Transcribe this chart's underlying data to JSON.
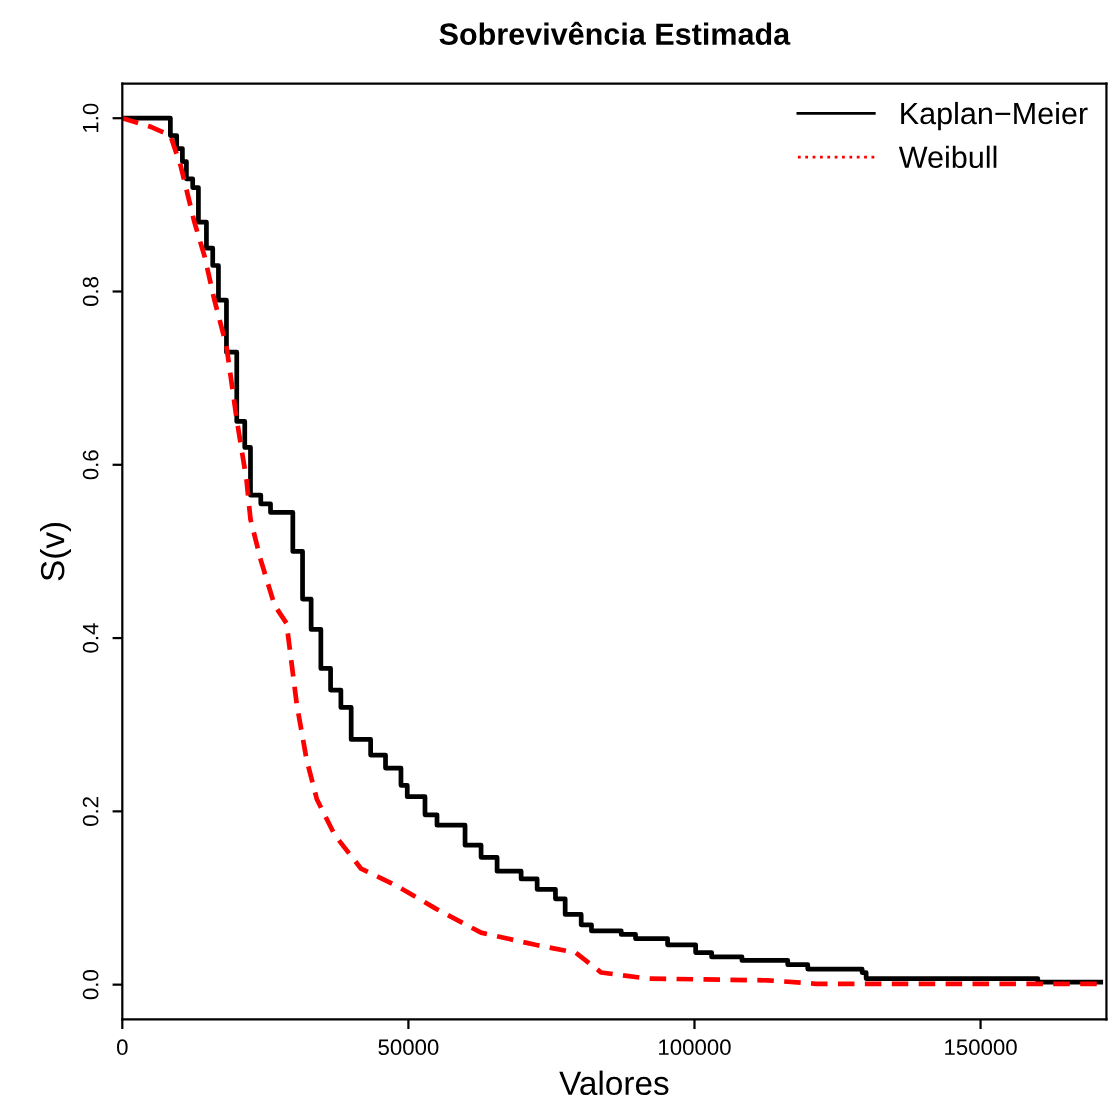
{
  "chart_data": {
    "type": "step",
    "title": "Sobrevivência Estimada",
    "xlabel": "Valores",
    "ylabel": "S(v)",
    "xlim": [
      0,
      172000
    ],
    "xticks": [
      0,
      50000,
      100000,
      150000
    ],
    "ylim": [
      -0.04,
      1.04
    ],
    "yticks": [
      {
        "value": 0,
        "label": "0.0"
      },
      {
        "value": 0.2,
        "label": "0.2"
      },
      {
        "value": 0.4,
        "label": "0.4"
      },
      {
        "value": 0.6,
        "label": "0.6"
      },
      {
        "value": 0.8,
        "label": "0.8"
      },
      {
        "value": 1,
        "label": "1.0"
      }
    ],
    "grid": false,
    "legend": "top right",
    "series": [
      {
        "name": "Kaplan−Meier",
        "color": "#000000",
        "line_style": "solid",
        "x": [
          0,
          8400,
          9500,
          10500,
          11200,
          12300,
          13300,
          14700,
          15800,
          16800,
          18200,
          20000,
          21400,
          22400,
          24200,
          25900,
          29800,
          31500,
          33000,
          34700,
          36400,
          38200,
          40000,
          43400,
          46000,
          48700,
          49800,
          52900,
          55000,
          59900,
          62700,
          65500,
          69700,
          72500,
          75700,
          77400,
          80200,
          82000,
          87200,
          89700,
          95300,
          100200,
          103000,
          108300,
          116300,
          119800,
          129300,
          130000,
          160000,
          171000
        ],
        "values": [
          1.0,
          0.98,
          0.965,
          0.95,
          0.93,
          0.92,
          0.88,
          0.85,
          0.83,
          0.79,
          0.73,
          0.65,
          0.62,
          0.565,
          0.555,
          0.545,
          0.5,
          0.445,
          0.41,
          0.365,
          0.34,
          0.32,
          0.283,
          0.265,
          0.25,
          0.23,
          0.217,
          0.196,
          0.184,
          0.161,
          0.147,
          0.131,
          0.122,
          0.11,
          0.099,
          0.081,
          0.069,
          0.062,
          0.058,
          0.053,
          0.046,
          0.037,
          0.032,
          0.028,
          0.023,
          0.018,
          0.014,
          0.007,
          0.003,
          0.003
        ]
      },
      {
        "name": "Weibull",
        "type": "line",
        "color": "#ff0000",
        "line_style": "dashed",
        "x": [
          0,
          5000,
          8400,
          10200,
          12600,
          14400,
          16100,
          18200,
          20000,
          21700,
          22400,
          24200,
          26600,
          28700,
          30500,
          32200,
          34000,
          37100,
          41700,
          47700,
          54700,
          62700,
          72200,
          79200,
          83700,
          91800,
          112800,
          121200,
          171000
        ],
        "values": [
          1.0,
          0.99,
          0.98,
          0.945,
          0.88,
          0.84,
          0.79,
          0.737,
          0.652,
          0.583,
          0.537,
          0.49,
          0.438,
          0.417,
          0.323,
          0.26,
          0.214,
          0.173,
          0.134,
          0.115,
          0.088,
          0.06,
          0.046,
          0.037,
          0.014,
          0.007,
          0.005,
          0.001,
          0.001
        ]
      }
    ]
  }
}
